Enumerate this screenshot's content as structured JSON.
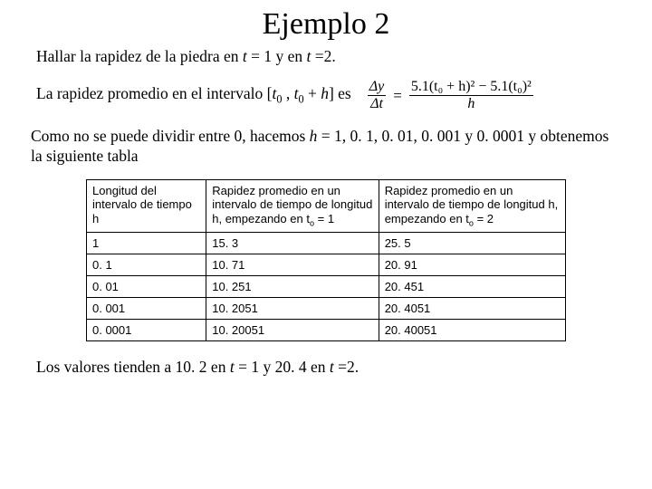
{
  "title": "Ejemplo 2",
  "line1_pre": "Hallar la rapidez de la piedra en ",
  "line1_t1a": "t",
  "line1_t1b": " = 1 y en ",
  "line1_t2a": "t",
  "line1_t2b": " =2.",
  "line2_pre": "La rapidez promedio en el intervalo [",
  "line2_t0a": "t",
  "line2_sub0": "0",
  "line2_mid": " , ",
  "line2_t0b": "t",
  "line2_sub1": "0",
  "line2_plus": " + ",
  "line2_h": "h",
  "line2_post": "] es",
  "formula": {
    "num_left": "Δy",
    "den_left": "Δt",
    "rhs_num": "5.1(t₀ + h)² − 5.1(t₀)²",
    "rhs_den": "h"
  },
  "line3_a": "Como no se puede dividir entre 0, hacemos ",
  "line3_h": "h",
  "line3_b": " = 1, 0. 1, 0. 01, 0. 001 y 0. 0001 y obtenemos la siguiente tabla",
  "table": {
    "col1_header_a": "Longitud del intervalo de tiempo h",
    "col2_header": "Rapidez promedio en un intervalo de tiempo de longitud h, empezando en t",
    "col2_sub": "o",
    "col2_tail": " = 1",
    "col3_header": "Rapidez promedio en un intervalo de tiempo de longitud h, empezando en t",
    "col3_sub": "o",
    "col3_tail": " = 2",
    "rows": [
      {
        "h": "1",
        "v1": "15. 3",
        "v2": "25. 5"
      },
      {
        "h": "0. 1",
        "v1": "10. 71",
        "v2": "20. 91"
      },
      {
        "h": "0. 01",
        "v1": "10. 251",
        "v2": "20. 451"
      },
      {
        "h": "0. 001",
        "v1": "10. 2051",
        "v2": "20. 4051"
      },
      {
        "h": "0. 0001",
        "v1": "10. 20051",
        "v2": "20. 40051"
      }
    ]
  },
  "line4_a": "Los valores tienden a 10. 2 en ",
  "line4_t1": "t",
  "line4_b": " = 1 y 20. 4 en ",
  "line4_t2": "t",
  "line4_c": " =2."
}
